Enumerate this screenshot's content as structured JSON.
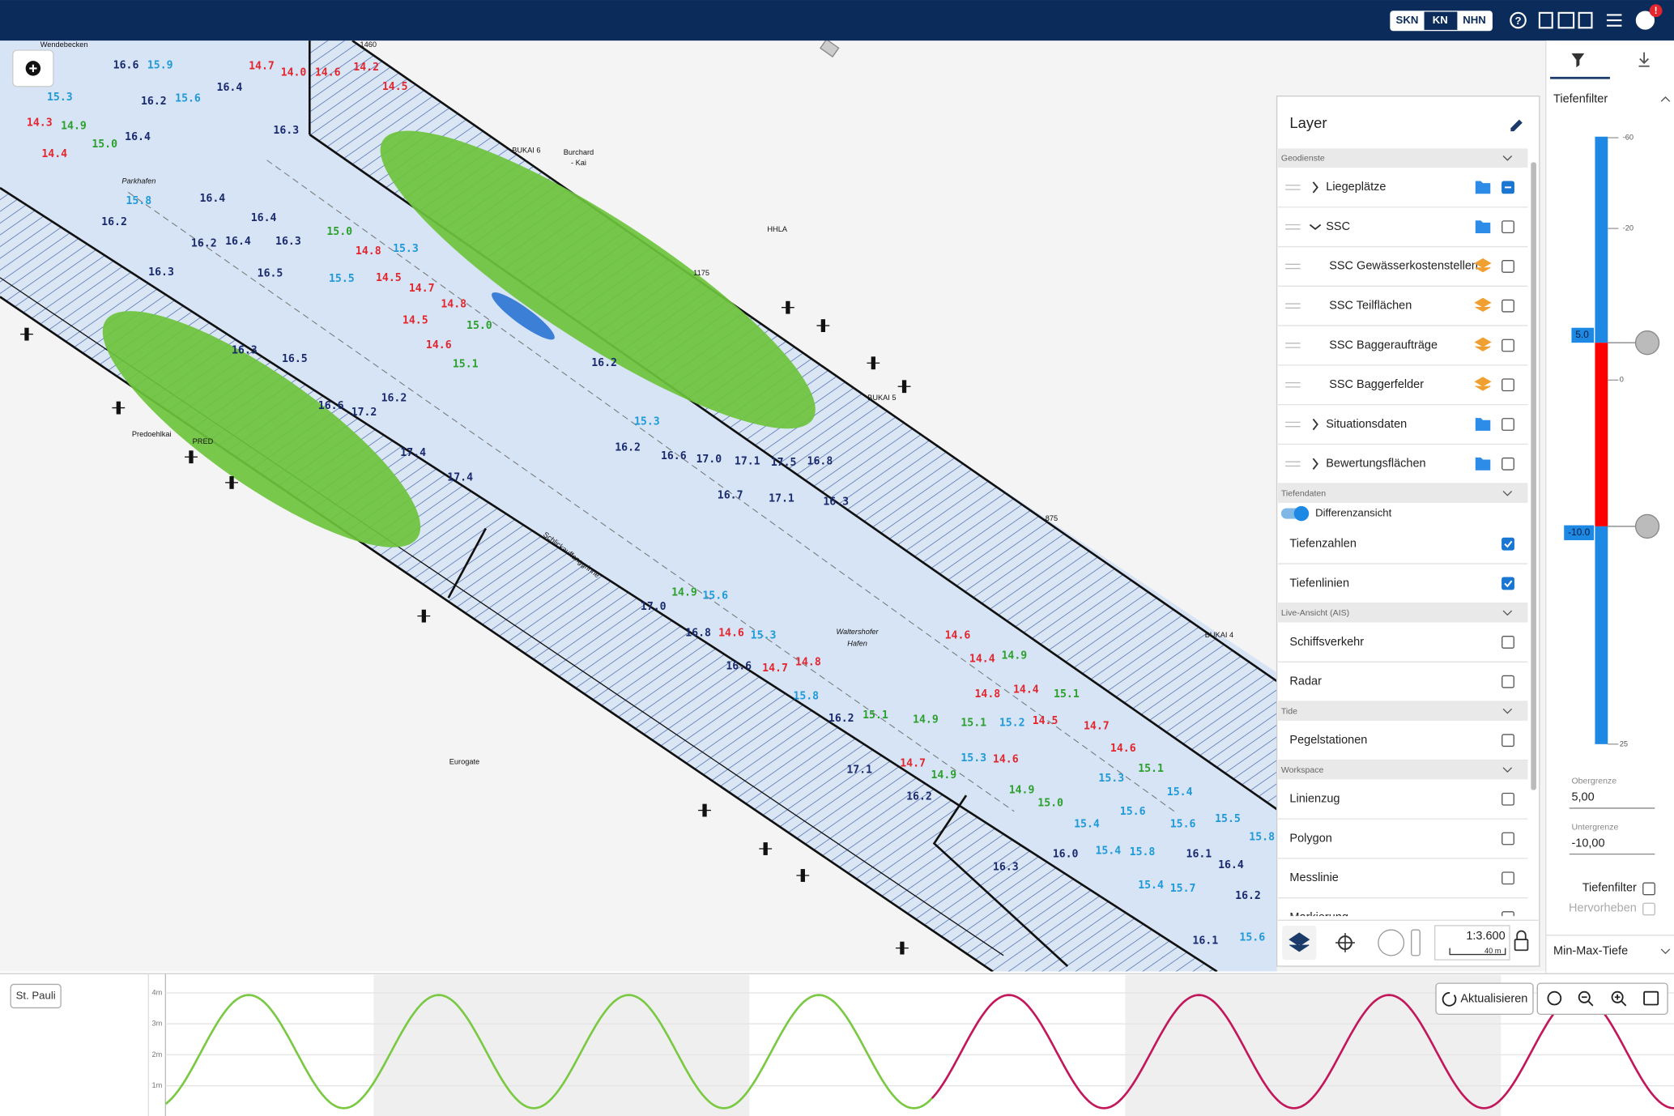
{
  "header": {
    "datum_options": [
      "SKN",
      "KN",
      "NHN"
    ],
    "active_datum": 1,
    "notification": "!"
  },
  "map": {
    "palette": {
      "shallow": "#e3262e",
      "limit": "#2ca02c",
      "medium": "#1f9ad8",
      "deep": "#1a2a6e"
    },
    "place_labels": [
      "Wendebecken",
      "Parkhafen",
      "Burchard",
      "- Kai",
      "BUKAI 6",
      "HHLA",
      "BUKAI 5",
      "Predoehlkai",
      "PRED",
      "Waltershofer",
      "Hafen",
      "Eurogate",
      "BUKAI 4",
      "1175",
      "875",
      "1460",
      "Schlickauffanggrinne"
    ],
    "soundings": [
      "16.6",
      "15.9",
      "14.7",
      "14.0",
      "14.6",
      "14.2",
      "14.5",
      "16.4",
      "15.3",
      "16.2",
      "15.6",
      "14.3",
      "14.9",
      "16.4",
      "15.0",
      "14.4",
      "16.3",
      "16.4",
      "15.8",
      "16.2",
      "16.4",
      "16.3",
      "15.0",
      "16.2",
      "16.4",
      "14.8",
      "15.3",
      "16.3",
      "16.5",
      "15.5",
      "14.5",
      "14.7",
      "14.8",
      "14.5",
      "15.0",
      "14.6",
      "15.1",
      "16.5",
      "16.3",
      "17.2",
      "16.6",
      "16.2",
      "17.4",
      "17.4",
      "16.2",
      "15.3",
      "16.2",
      "16.6",
      "17.0",
      "17.1",
      "17.5",
      "16.8",
      "16.7",
      "17.1",
      "16.3",
      "14.9",
      "15.6",
      "17.0",
      "16.8",
      "14.6",
      "15.3",
      "16.6",
      "14.7",
      "14.8",
      "15.8",
      "16.2",
      "15.1",
      "14.9",
      "15.1",
      "15.2",
      "14.5",
      "14.6",
      "14.9",
      "14.4",
      "14.8",
      "14.4",
      "15.1",
      "14.7",
      "14.6",
      "15.1",
      "15.4",
      "17.1",
      "16.2",
      "14.7",
      "14.9",
      "15.3",
      "14.6",
      "14.9",
      "15.0",
      "15.4",
      "15.6",
      "15.6",
      "15.5",
      "15.3",
      "16.3",
      "16.0",
      "15.4",
      "15.8",
      "15.4",
      "15.7",
      "16.1",
      "16.4",
      "16.2",
      "15.6",
      "16.1",
      "15.8"
    ]
  },
  "layer_panel": {
    "title": "Layer",
    "sections": [
      {
        "title": "Geodienste",
        "rows": [
          {
            "label": "Liegeplätze",
            "expand": "closed",
            "icon": "folder",
            "state": "mixed"
          },
          {
            "label": "SSC",
            "expand": "open",
            "icon": "folder",
            "state": "off"
          },
          {
            "label": "SSC Gewässerkostenstellen",
            "icon": "layers",
            "state": "off"
          },
          {
            "label": "SSC Teilflächen",
            "icon": "layers",
            "state": "off"
          },
          {
            "label": "SSC Baggeraufträge",
            "icon": "layers",
            "state": "off"
          },
          {
            "label": "SSC Baggerfelder",
            "icon": "layers",
            "state": "off"
          },
          {
            "label": "Situationsdaten",
            "expand": "closed",
            "icon": "folder",
            "state": "off"
          },
          {
            "label": "Bewertungsflächen",
            "expand": "closed",
            "icon": "folder",
            "state": "off"
          }
        ]
      },
      {
        "title": "Tiefendaten",
        "rows": [
          {
            "label": "Differenzansicht",
            "toggle": true
          },
          {
            "label": "Tiefenzahlen",
            "state": "on"
          },
          {
            "label": "Tiefenlinien",
            "state": "on"
          }
        ]
      },
      {
        "title": "Live-Ansicht (AIS)",
        "rows": [
          {
            "label": "Schiffsverkehr",
            "state": "off"
          },
          {
            "label": "Radar",
            "state": "off"
          }
        ]
      },
      {
        "title": "Tide",
        "rows": [
          {
            "label": "Pegelstationen",
            "state": "off"
          }
        ]
      },
      {
        "title": "Workspace",
        "rows": [
          {
            "label": "Linienzug",
            "state": "off"
          },
          {
            "label": "Polygon",
            "state": "off"
          },
          {
            "label": "Messlinie",
            "state": "off"
          },
          {
            "label": "Markierung",
            "state": "off"
          }
        ]
      }
    ],
    "scale": "1:3.600",
    "scale_bar": "40 m"
  },
  "filter_panel": {
    "title": "Tiefenfilter",
    "scale_labels": [
      "-60",
      "-20",
      "0",
      "25"
    ],
    "upper_marker": "5.0",
    "lower_marker": "-10.0",
    "upper_label": "Obergrenze",
    "upper_value": "5,00",
    "lower_label": "Untergrenze",
    "lower_value": "-10,00",
    "options": [
      "Tiefenfilter",
      "Hervorheben"
    ],
    "next_section": "Min-Max-Tiefe"
  },
  "tide_panel": {
    "station": "St. Pauli",
    "y_labels": [
      "4m",
      "3m",
      "2m",
      "1m"
    ],
    "refresh": "Aktualisieren"
  }
}
